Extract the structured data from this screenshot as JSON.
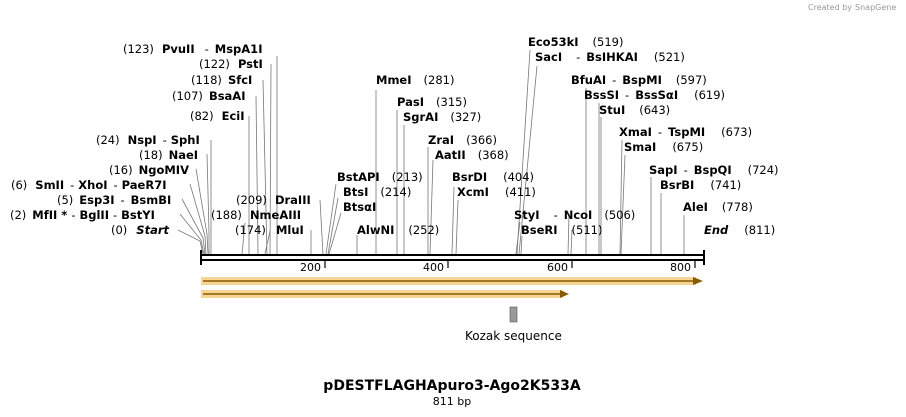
{
  "credit": {
    "created_by": "Created by",
    "brand": "SnapGene"
  },
  "map": {
    "title": "pDESTFLAGHApuro3-Ago2K533A",
    "length_text": "811 bp",
    "total_bp": 811,
    "ticks": [
      "200",
      "400",
      "600",
      "800"
    ],
    "tick_values": [
      200,
      400,
      600,
      800
    ]
  },
  "features": [
    {
      "name": "orf-arrow-full",
      "start": 1,
      "end": 811,
      "label": ""
    },
    {
      "name": "orf-arrow-partial",
      "start": 1,
      "end": 600,
      "label": ""
    },
    {
      "name": "kozak-sequence",
      "start": 506,
      "end": 517,
      "label": "Kozak sequence"
    }
  ],
  "sites": [
    {
      "pos": "(0)",
      "n1": "Start",
      "n2": "",
      "italic": true,
      "bp": 0
    },
    {
      "pos": "(2)",
      "n1": "MfII *",
      "n2": "BglII",
      "n3": "BstYI",
      "bp": 2
    },
    {
      "pos": "(5)",
      "n1": "Esp3I",
      "n2": "BsmBI",
      "bp": 5
    },
    {
      "pos": "(6)",
      "n1": "SmII",
      "n2": "XhoI",
      "n3": "PaeR7I",
      "bp": 6
    },
    {
      "pos": "(16)",
      "n1": "NgoMIV",
      "n2": "",
      "bp": 16
    },
    {
      "pos": "(18)",
      "n1": "NaeI",
      "n2": "",
      "bp": 18
    },
    {
      "pos": "(24)",
      "n1": "NspI",
      "n2": "SphI",
      "bp": 24
    },
    {
      "pos": "(82)",
      "n1": "EciI",
      "n2": "",
      "bp": 82
    },
    {
      "pos": "(107)",
      "n1": "BsaAI",
      "n2": "",
      "bp": 107
    },
    {
      "pos": "(118)",
      "n1": "SfcI",
      "n2": "",
      "bp": 118
    },
    {
      "pos": "(122)",
      "n1": "PstI",
      "n2": "",
      "bp": 122
    },
    {
      "pos": "(123)",
      "n1": "PvuII",
      "n2": "MspA1I",
      "bp": 123
    },
    {
      "pos": "(174)",
      "n1": "MluI",
      "n2": "",
      "bp": 174
    },
    {
      "pos": "(188)",
      "n1": "NmeAIII",
      "n2": "",
      "bp": 188
    },
    {
      "pos": "(209)",
      "n1": "DraIII",
      "n2": "",
      "bp": 209
    },
    {
      "pos": "(213)",
      "n1": "BstAPI",
      "n2": "",
      "bp": 213
    },
    {
      "pos": "(214)",
      "n1": "BtsI",
      "n2": "",
      "bp": 214
    },
    {
      "pos": "",
      "n1": "BtsαI",
      "n2": "",
      "bp": 214
    },
    {
      "pos": "(252)",
      "n1": "AlwNI",
      "n2": "",
      "bp": 252
    },
    {
      "pos": "(281)",
      "n1": "MmeI",
      "n2": "",
      "bp": 281
    },
    {
      "pos": "(315)",
      "n1": "PasI",
      "n2": "",
      "bp": 315
    },
    {
      "pos": "(327)",
      "n1": "SgrAI",
      "n2": "",
      "bp": 327
    },
    {
      "pos": "(366)",
      "n1": "ZraI",
      "n2": "",
      "bp": 366
    },
    {
      "pos": "(368)",
      "n1": "AatII",
      "n2": "",
      "bp": 368
    },
    {
      "pos": "(404)",
      "n1": "BsrDI",
      "n2": "",
      "bp": 404
    },
    {
      "pos": "(411)",
      "n1": "XcmI",
      "n2": "",
      "bp": 411
    },
    {
      "pos": "(519)",
      "n1": "Eco53kI",
      "n2": "",
      "bp": 519
    },
    {
      "pos": "(521)",
      "n1": "SacI",
      "n2": "BsIHKAI",
      "bp": 521
    },
    {
      "pos": "",
      "n1": "StyI",
      "n2": "NcoI",
      "bp": 510
    },
    {
      "pos": "(506)",
      "n1": "",
      "n2": "",
      "bp": 506
    },
    {
      "pos": "(511)",
      "n1": "BseRI",
      "n2": "",
      "bp": 511
    },
    {
      "pos": "(597)",
      "n1": "BfuAI",
      "n2": "BspMI",
      "bp": 597
    },
    {
      "pos": "(619)",
      "n1": "BssSI",
      "n2": "BssSαI",
      "bp": 619
    },
    {
      "pos": "(643)",
      "n1": "StuI",
      "n2": "",
      "bp": 643
    },
    {
      "pos": "(673)",
      "n1": "XmaI",
      "n2": "TspMI",
      "bp": 673
    },
    {
      "pos": "(675)",
      "n1": "SmaI",
      "n2": "",
      "bp": 675
    },
    {
      "pos": "(724)",
      "n1": "SapI",
      "n2": "BspQI",
      "bp": 724
    },
    {
      "pos": "(741)",
      "n1": "BsrBI",
      "n2": "",
      "bp": 741
    },
    {
      "pos": "(778)",
      "n1": "AleI",
      "n2": "",
      "bp": 778
    },
    {
      "pos": "(811)",
      "n1": "End",
      "n2": "",
      "italic": true,
      "bp": 811
    }
  ],
  "colors": {
    "arrow_fill": "#f5d089",
    "arrow_edge": "#8a5a00",
    "kozak": "#999999",
    "backbone": "#000000"
  }
}
